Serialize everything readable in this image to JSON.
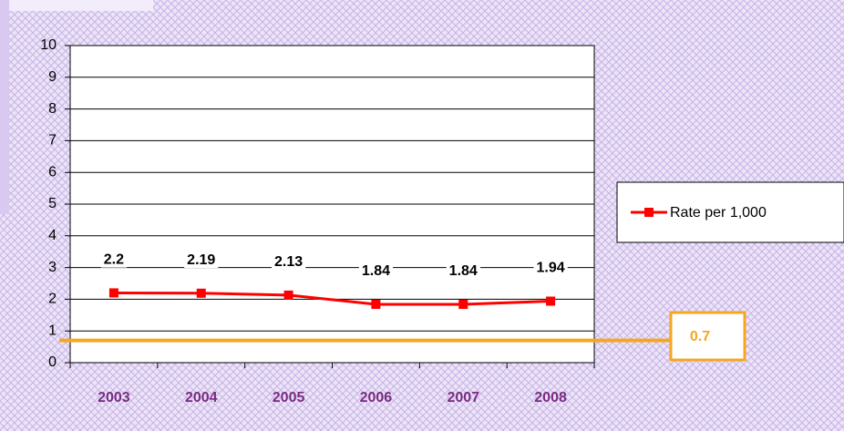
{
  "chart_data": {
    "type": "line",
    "categories": [
      "2003",
      "2004",
      "2005",
      "2006",
      "2007",
      "2008"
    ],
    "series": [
      {
        "name": "Rate per 1,000",
        "color": "#ff0000",
        "values": [
          2.2,
          2.19,
          2.13,
          1.84,
          1.84,
          1.94
        ]
      }
    ],
    "ylim": [
      0,
      10
    ],
    "yticks": [
      0,
      1,
      2,
      3,
      4,
      5,
      6,
      7,
      8,
      9,
      10
    ],
    "grid": true,
    "legend": "right",
    "reference_line": 0.7,
    "reference_color": "#f5a623"
  }
}
